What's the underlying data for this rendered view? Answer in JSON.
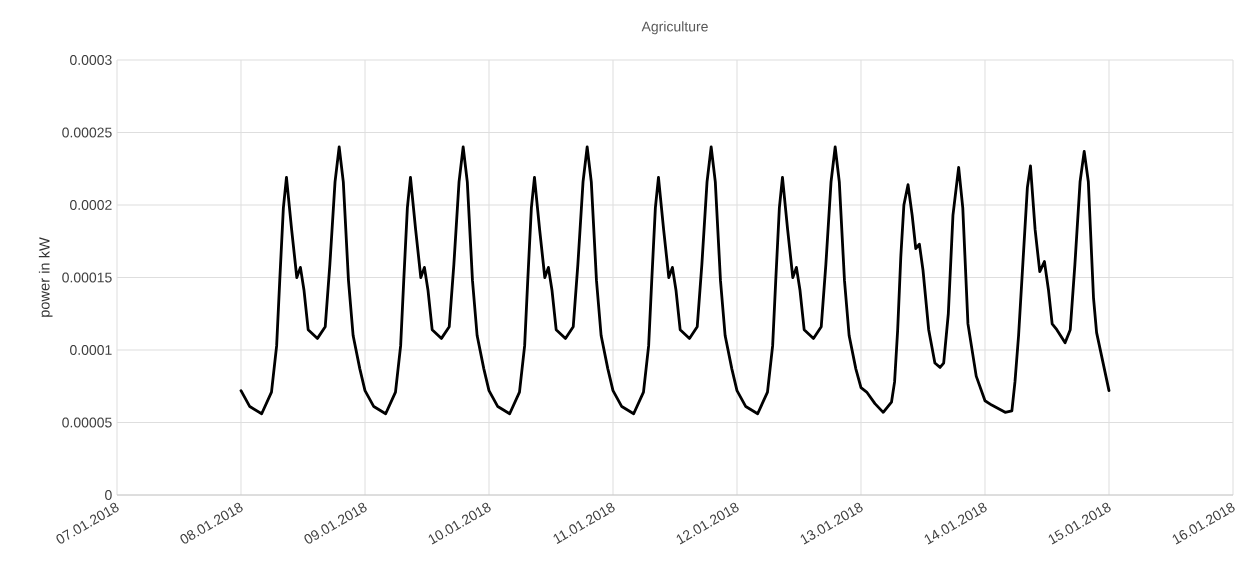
{
  "chart_data": {
    "type": "line",
    "title": "Agriculture",
    "ylabel": "power in kW",
    "x": [
      "2018-01-08T00:00",
      "2018-01-08T01:42",
      "2018-01-08T04:00",
      "2018-01-08T05:54",
      "2018-01-08T06:54",
      "2018-01-08T07:30",
      "2018-01-08T08:12",
      "2018-01-08T08:48",
      "2018-01-08T09:48",
      "2018-01-08T10:48",
      "2018-01-08T11:30",
      "2018-01-08T12:12",
      "2018-01-08T13:00",
      "2018-01-08T14:48",
      "2018-01-08T16:18",
      "2018-01-08T17:12",
      "2018-01-08T18:12",
      "2018-01-08T19:00",
      "2018-01-08T19:48",
      "2018-01-08T20:48",
      "2018-01-08T21:42",
      "2018-01-08T23:00",
      "2018-01-09T00:00",
      "2018-01-09T01:42",
      "2018-01-09T04:00",
      "2018-01-09T05:54",
      "2018-01-09T06:54",
      "2018-01-09T07:30",
      "2018-01-09T08:12",
      "2018-01-09T08:48",
      "2018-01-09T09:48",
      "2018-01-09T10:48",
      "2018-01-09T11:30",
      "2018-01-09T12:12",
      "2018-01-09T13:00",
      "2018-01-09T14:48",
      "2018-01-09T16:18",
      "2018-01-09T17:12",
      "2018-01-09T18:12",
      "2018-01-09T19:00",
      "2018-01-09T19:48",
      "2018-01-09T20:48",
      "2018-01-09T21:42",
      "2018-01-09T23:00",
      "2018-01-10T00:00",
      "2018-01-10T01:42",
      "2018-01-10T04:00",
      "2018-01-10T05:54",
      "2018-01-10T06:54",
      "2018-01-10T07:30",
      "2018-01-10T08:12",
      "2018-01-10T08:48",
      "2018-01-10T09:48",
      "2018-01-10T10:48",
      "2018-01-10T11:30",
      "2018-01-10T12:12",
      "2018-01-10T13:00",
      "2018-01-10T14:48",
      "2018-01-10T16:18",
      "2018-01-10T17:12",
      "2018-01-10T18:12",
      "2018-01-10T19:00",
      "2018-01-10T19:48",
      "2018-01-10T20:48",
      "2018-01-10T21:42",
      "2018-01-10T23:00",
      "2018-01-11T00:00",
      "2018-01-11T01:42",
      "2018-01-11T04:00",
      "2018-01-11T05:54",
      "2018-01-11T06:54",
      "2018-01-11T07:30",
      "2018-01-11T08:12",
      "2018-01-11T08:48",
      "2018-01-11T09:48",
      "2018-01-11T10:48",
      "2018-01-11T11:30",
      "2018-01-11T12:12",
      "2018-01-11T13:00",
      "2018-01-11T14:48",
      "2018-01-11T16:18",
      "2018-01-11T17:12",
      "2018-01-11T18:12",
      "2018-01-11T19:00",
      "2018-01-11T19:48",
      "2018-01-11T20:48",
      "2018-01-11T21:42",
      "2018-01-11T23:00",
      "2018-01-12T00:00",
      "2018-01-12T01:42",
      "2018-01-12T04:00",
      "2018-01-12T05:54",
      "2018-01-12T06:54",
      "2018-01-12T07:30",
      "2018-01-12T08:12",
      "2018-01-12T08:48",
      "2018-01-12T09:48",
      "2018-01-12T10:48",
      "2018-01-12T11:30",
      "2018-01-12T12:12",
      "2018-01-12T13:00",
      "2018-01-12T14:48",
      "2018-01-12T16:18",
      "2018-01-12T17:12",
      "2018-01-12T18:12",
      "2018-01-12T19:00",
      "2018-01-12T19:48",
      "2018-01-12T20:48",
      "2018-01-12T21:42",
      "2018-01-12T23:00",
      "2018-01-13T00:00",
      "2018-01-13T01:06",
      "2018-01-13T02:42",
      "2018-01-13T04:18",
      "2018-01-13T05:54",
      "2018-01-13T06:30",
      "2018-01-13T07:06",
      "2018-01-13T07:42",
      "2018-01-13T08:18",
      "2018-01-13T09:06",
      "2018-01-13T09:54",
      "2018-01-13T10:36",
      "2018-01-13T11:18",
      "2018-01-13T12:00",
      "2018-01-13T13:06",
      "2018-01-13T14:18",
      "2018-01-13T15:18",
      "2018-01-13T16:00",
      "2018-01-13T16:54",
      "2018-01-13T17:48",
      "2018-01-13T18:54",
      "2018-01-13T19:42",
      "2018-01-13T20:42",
      "2018-01-13T22:18",
      "2018-01-14T00:00",
      "2018-01-14T01:18",
      "2018-01-14T03:54",
      "2018-01-14T05:12",
      "2018-01-14T05:48",
      "2018-01-14T06:30",
      "2018-01-14T07:24",
      "2018-01-14T08:12",
      "2018-01-14T08:48",
      "2018-01-14T09:42",
      "2018-01-14T10:36",
      "2018-01-14T11:30",
      "2018-01-14T12:18",
      "2018-01-14T13:00",
      "2018-01-14T13:54",
      "2018-01-14T15:30",
      "2018-01-14T16:30",
      "2018-01-14T17:24",
      "2018-01-14T18:24",
      "2018-01-14T19:12",
      "2018-01-14T20:00",
      "2018-01-14T21:00",
      "2018-01-14T21:36",
      "2018-01-15T00:00"
    ],
    "series": [
      {
        "color": "#000000",
        "values": [
          7.2e-05,
          6.1e-05,
          5.6e-05,
          7.1e-05,
          0.000103,
          0.000148,
          0.000198,
          0.000219,
          0.000183,
          0.00015,
          0.000157,
          0.000141,
          0.000114,
          0.000108,
          0.000116,
          0.000159,
          0.000216,
          0.00024,
          0.000216,
          0.000148,
          0.00011,
          8.7e-05,
          7.2e-05,
          6.1e-05,
          5.6e-05,
          7.1e-05,
          0.000103,
          0.000148,
          0.000198,
          0.000219,
          0.000183,
          0.00015,
          0.000157,
          0.000141,
          0.000114,
          0.000108,
          0.000116,
          0.000159,
          0.000216,
          0.00024,
          0.000216,
          0.000148,
          0.00011,
          8.7e-05,
          7.2e-05,
          6.1e-05,
          5.6e-05,
          7.1e-05,
          0.000103,
          0.000148,
          0.000198,
          0.000219,
          0.000183,
          0.00015,
          0.000157,
          0.000141,
          0.000114,
          0.000108,
          0.000116,
          0.000159,
          0.000216,
          0.00024,
          0.000216,
          0.000148,
          0.00011,
          8.7e-05,
          7.2e-05,
          6.1e-05,
          5.6e-05,
          7.1e-05,
          0.000103,
          0.000148,
          0.000198,
          0.000219,
          0.000183,
          0.00015,
          0.000157,
          0.000141,
          0.000114,
          0.000108,
          0.000116,
          0.000159,
          0.000216,
          0.00024,
          0.000216,
          0.000148,
          0.00011,
          8.7e-05,
          7.2e-05,
          6.1e-05,
          5.6e-05,
          7.1e-05,
          0.000103,
          0.000148,
          0.000198,
          0.000219,
          0.000183,
          0.00015,
          0.000157,
          0.000141,
          0.000114,
          0.000108,
          0.000116,
          0.000159,
          0.000216,
          0.00024,
          0.000216,
          0.000148,
          0.00011,
          8.7e-05,
          7.4e-05,
          7.1e-05,
          6.3e-05,
          5.7e-05,
          6.4e-05,
          7.8e-05,
          0.000114,
          0.000164,
          0.0002,
          0.000214,
          0.000193,
          0.00017,
          0.000173,
          0.000155,
          0.000114,
          9.1e-05,
          8.8e-05,
          9.1e-05,
          0.000125,
          0.000193,
          0.000226,
          0.000198,
          0.000118,
          8.2e-05,
          6.5e-05,
          6.2e-05,
          5.7e-05,
          5.8e-05,
          7.8e-05,
          0.00011,
          0.000164,
          0.000212,
          0.000227,
          0.000183,
          0.000154,
          0.000161,
          0.000141,
          0.000118,
          0.000114,
          0.000105,
          0.000114,
          0.000159,
          0.000216,
          0.000237,
          0.000216,
          0.000136,
          0.000112,
          7.2e-05
        ]
      }
    ],
    "xlim": [
      "2018-01-07",
      "2018-01-16"
    ],
    "xticks": [
      {
        "value": "2018-01-07",
        "label": "07.01.2018"
      },
      {
        "value": "2018-01-08",
        "label": "08.01.2018"
      },
      {
        "value": "2018-01-09",
        "label": "09.01.2018"
      },
      {
        "value": "2018-01-10",
        "label": "10.01.2018"
      },
      {
        "value": "2018-01-11",
        "label": "11.01.2018"
      },
      {
        "value": "2018-01-12",
        "label": "12.01.2018"
      },
      {
        "value": "2018-01-13",
        "label": "13.01.2018"
      },
      {
        "value": "2018-01-14",
        "label": "14.01.2018"
      },
      {
        "value": "2018-01-15",
        "label": "15.01.2018"
      },
      {
        "value": "2018-01-16",
        "label": "16.01.2018"
      }
    ],
    "ylim": [
      0,
      0.0003
    ],
    "yticks": [
      0,
      {
        "value": 5e-05,
        "label": "0.00005"
      },
      {
        "value": 0.0001,
        "label": "0.0001"
      },
      {
        "value": 0.00015,
        "label": "0.00015"
      },
      {
        "value": 0.0002,
        "label": "0.0002"
      },
      {
        "value": 0.00025,
        "label": "0.00025"
      },
      {
        "value": 0.0003,
        "label": "0.0003"
      }
    ],
    "grid": true,
    "marker": "none",
    "line_style": "solid"
  }
}
